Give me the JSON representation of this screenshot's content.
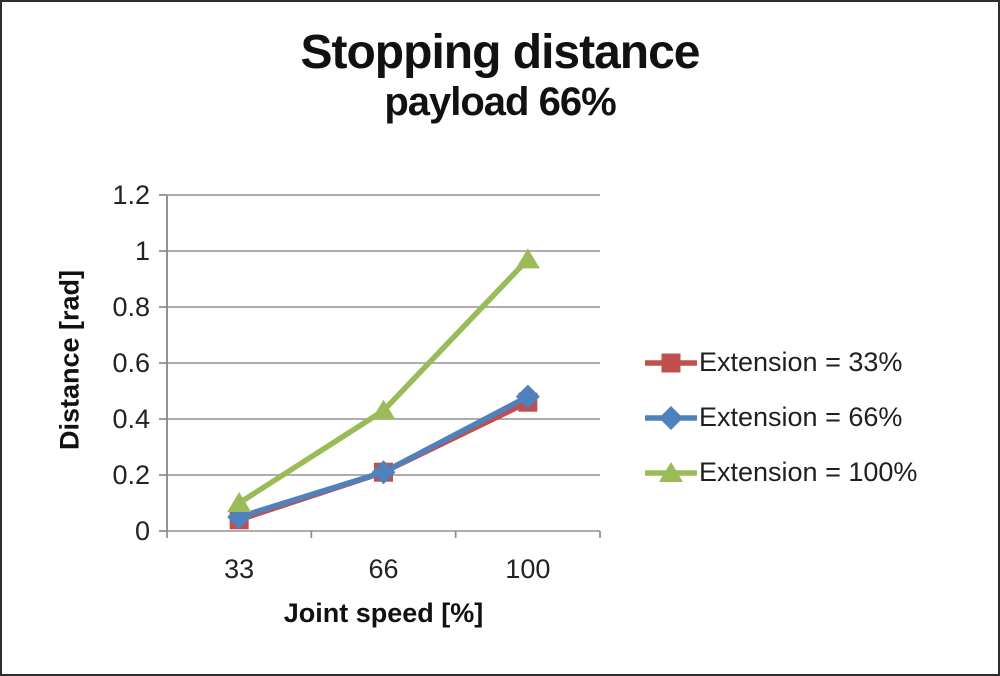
{
  "frame": {
    "background_color": "#ffffff",
    "border_color": "#2e2e2e"
  },
  "chart_data": {
    "type": "line",
    "title": "Stopping distance",
    "subtitle": "payload 66%",
    "xlabel": "Joint speed [%]",
    "ylabel": "Distance [rad]",
    "categories": [
      "33",
      "66",
      "100"
    ],
    "ylim": [
      0,
      1.2
    ],
    "ytick_step": 0.2,
    "ytick_labels": [
      "0",
      "0.2",
      "0.4",
      "0.6",
      "0.8",
      "1",
      "1.2"
    ],
    "grid": true,
    "legend_position": "right",
    "series": [
      {
        "name": "Extension = 33%",
        "marker": "square",
        "color": "#c0504d",
        "values": [
          0.04,
          0.21,
          0.46
        ]
      },
      {
        "name": "Extension = 66%",
        "marker": "diamond",
        "color": "#4f81bd",
        "values": [
          0.05,
          0.21,
          0.48
        ]
      },
      {
        "name": "Extension = 100%",
        "marker": "triangle",
        "color": "#9bbb59",
        "values": [
          0.1,
          0.43,
          0.97
        ]
      }
    ],
    "gridline_color": "#a3a3a3",
    "axis_color": "#8c8c8c",
    "text_color": "#1f1f1f"
  }
}
